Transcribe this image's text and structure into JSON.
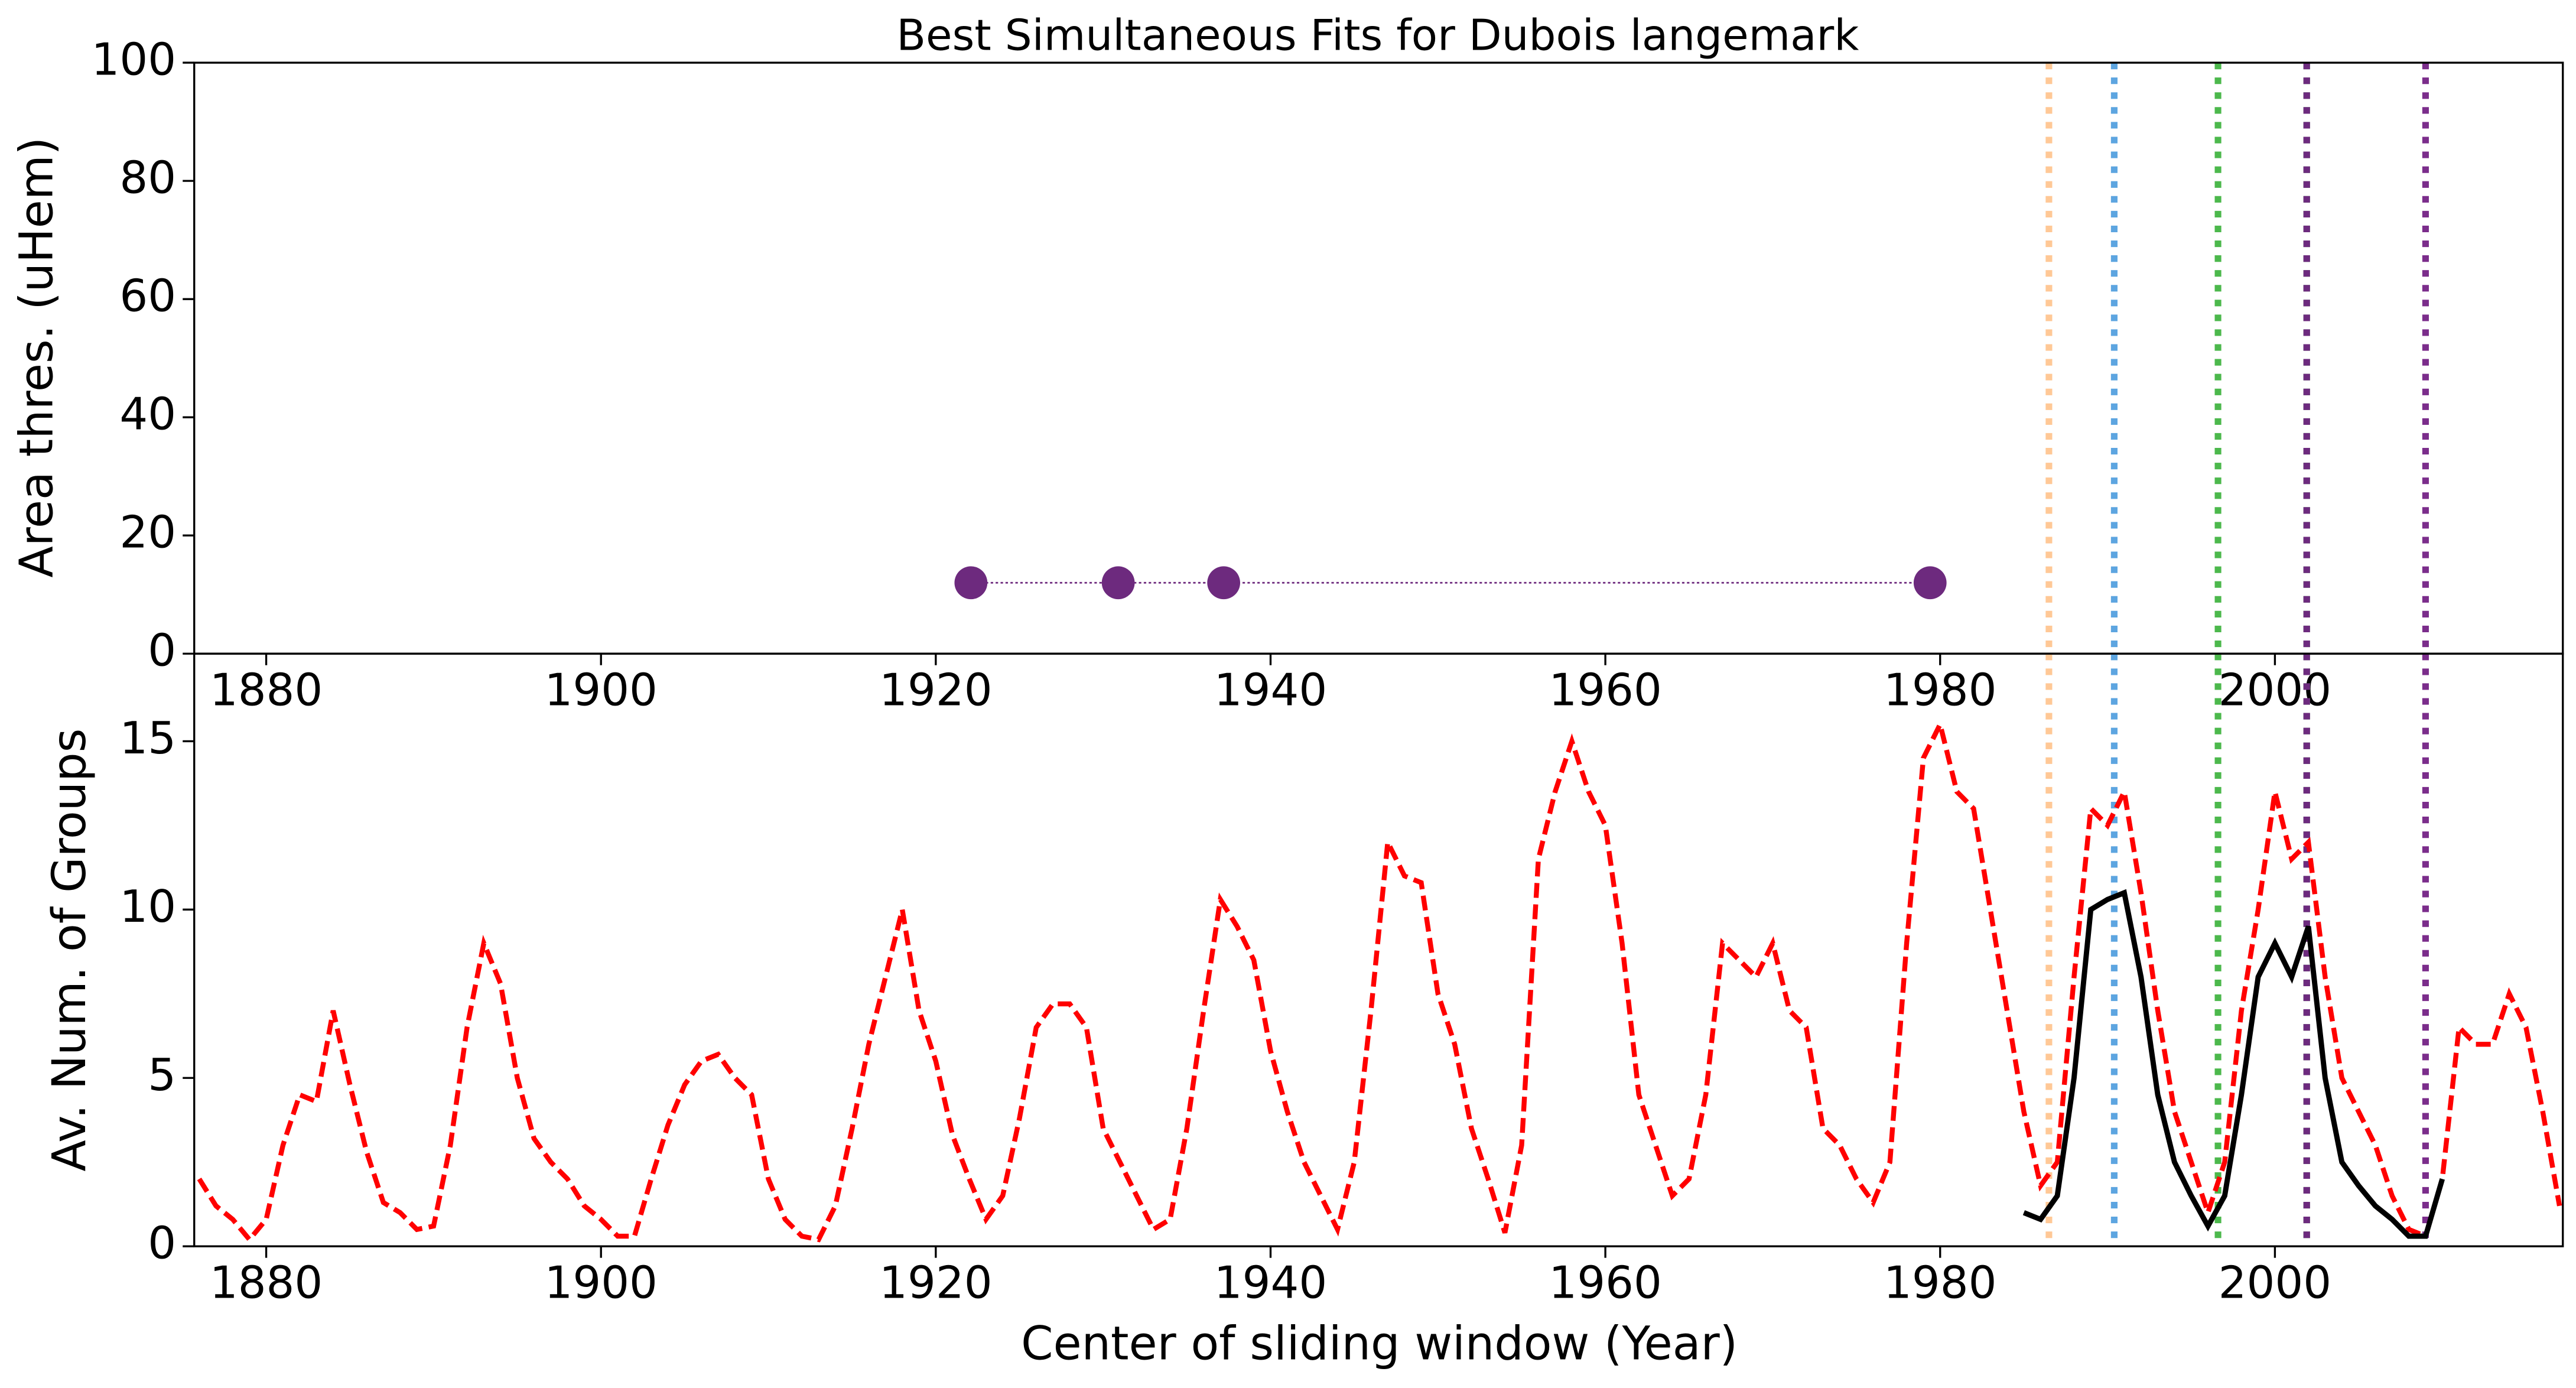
{
  "chart_data": [
    {
      "type": "line",
      "title": "Best Simultaneous Fits for Dubois langemark",
      "ylabel": "Area thres. (uHem)",
      "xlim": [
        1875.7,
        2017.2
      ],
      "xticks": [
        1880,
        1900,
        1920,
        1940,
        1960,
        1980,
        2000
      ],
      "ylim": [
        0,
        100
      ],
      "yticks": [
        0,
        20,
        40,
        60,
        80,
        100
      ],
      "marker": true,
      "vlines": [
        {
          "value": 1986.5,
          "color": "#ffc896"
        },
        {
          "value": 1990.4,
          "color": "#5da5e0"
        },
        {
          "value": 1996.6,
          "color": "#4cb84c"
        },
        {
          "value": 2001.9,
          "color": "#4cb84c"
        },
        {
          "value": 2001.9,
          "color": "#6d2a7e"
        },
        {
          "value": 2009.0,
          "color": "#7b2d8b"
        }
      ],
      "series": [
        {
          "color": "#6d2a7e",
          "x": [
            1922.1,
            1930.9,
            1937.2,
            1979.4
          ],
          "values": [
            12,
            12,
            12,
            12
          ]
        }
      ]
    },
    {
      "type": "line",
      "xlabel": "Center of sliding window (Year)",
      "ylabel": "Av. Num. of Groups",
      "xlim": [
        1875.7,
        2017.2
      ],
      "xticks": [
        1880,
        1900,
        1920,
        1940,
        1960,
        1980,
        2000
      ],
      "ylim": [
        0,
        17.6
      ],
      "yticks": [
        0,
        5,
        10,
        15
      ],
      "marker": false,
      "vlines": [
        {
          "value": 1986.5,
          "color": "#ffc896"
        },
        {
          "value": 1990.4,
          "color": "#5da5e0"
        },
        {
          "value": 1996.6,
          "color": "#4cb84c"
        },
        {
          "value": 2001.9,
          "color": "#4cb84c"
        },
        {
          "value": 2001.9,
          "color": "#6d2a7e"
        },
        {
          "value": 2009.0,
          "color": "#7b2d8b"
        }
      ],
      "series": [
        {
          "color": "#ff0000",
          "dash": true,
          "x": [
            1876,
            1877,
            1878,
            1879,
            1880,
            1881,
            1882,
            1883,
            1884,
            1885,
            1886,
            1887,
            1888,
            1889,
            1890,
            1891,
            1892,
            1893,
            1894,
            1895,
            1896,
            1897,
            1898,
            1899,
            1900,
            1901,
            1902,
            1903,
            1904,
            1905,
            1906,
            1907,
            1908,
            1909,
            1910,
            1911,
            1912,
            1913,
            1914,
            1915,
            1916,
            1917,
            1918,
            1919,
            1920,
            1921,
            1922,
            1923,
            1924,
            1925,
            1926,
            1927,
            1928,
            1929,
            1930,
            1931,
            1932,
            1933,
            1934,
            1935,
            1936,
            1937,
            1938,
            1939,
            1940,
            1941,
            1942,
            1943,
            1944,
            1945,
            1946,
            1947,
            1948,
            1949,
            1950,
            1951,
            1952,
            1953,
            1954,
            1955,
            1956,
            1957,
            1958,
            1959,
            1960,
            1961,
            1962,
            1963,
            1964,
            1965,
            1966,
            1967,
            1968,
            1969,
            1970,
            1971,
            1972,
            1973,
            1974,
            1975,
            1976,
            1977,
            1978,
            1979,
            1980,
            1981,
            1982,
            1983,
            1984,
            1985,
            1986,
            1987,
            1988,
            1989,
            1990,
            1991,
            1992,
            1993,
            1994,
            1995,
            1996,
            1997,
            1998,
            1999,
            2000,
            2001,
            2002,
            2003,
            2004,
            2005,
            2006,
            2007,
            2008,
            2009,
            2010,
            2011,
            2012,
            2013,
            2014,
            2015,
            2016,
            2017
          ],
          "values": [
            2.0,
            1.2,
            0.8,
            0.2,
            0.8,
            3.0,
            4.5,
            4.3,
            7.0,
            4.8,
            2.8,
            1.3,
            1.0,
            0.5,
            0.6,
            3.0,
            6.5,
            9.0,
            7.8,
            5.0,
            3.2,
            2.5,
            2.0,
            1.2,
            0.8,
            0.3,
            0.3,
            2.0,
            3.6,
            4.8,
            5.5,
            5.7,
            5.0,
            4.5,
            2.0,
            0.8,
            0.3,
            0.2,
            1.2,
            3.5,
            6.0,
            8.0,
            10.0,
            7.0,
            5.5,
            3.3,
            2.0,
            0.8,
            1.5,
            3.8,
            6.5,
            7.2,
            7.2,
            6.5,
            3.5,
            2.5,
            1.5,
            0.5,
            0.8,
            3.5,
            7.0,
            10.3,
            9.5,
            8.5,
            5.8,
            4.0,
            2.5,
            1.5,
            0.5,
            2.5,
            7.0,
            12.0,
            11.0,
            10.8,
            7.5,
            6.0,
            3.5,
            2.0,
            0.4,
            3.0,
            11.5,
            13.5,
            15.0,
            13.5,
            12.5,
            9.0,
            4.5,
            3.0,
            1.5,
            2.0,
            4.5,
            9.0,
            8.5,
            8.0,
            9.0,
            7.0,
            6.5,
            3.5,
            3.0,
            2.0,
            1.3,
            2.5,
            9.0,
            14.5,
            15.5,
            13.5,
            13.0,
            10.0,
            7.0,
            4.0,
            1.8,
            2.5,
            8.0,
            13.0,
            12.5,
            13.5,
            10.5,
            7.0,
            4.0,
            2.5,
            1.0,
            2.5,
            7.0,
            10.0,
            13.5,
            11.5,
            12.0,
            8.0,
            5.0,
            4.0,
            3.0,
            1.5,
            0.5,
            0.3,
            2.0,
            6.5,
            6.0,
            6.0,
            7.5,
            6.5,
            4.0,
            1.2
          ]
        },
        {
          "color": "#000000",
          "dash": false,
          "x": [
            1985,
            1986,
            1987,
            1988,
            1989,
            1990,
            1991,
            1992,
            1993,
            1994,
            1995,
            1996,
            1997,
            1998,
            1999,
            2000,
            2001,
            2002,
            2003,
            2004,
            2005,
            2006,
            2007,
            2008,
            2009,
            2010
          ],
          "values": [
            1.0,
            0.8,
            1.5,
            5.0,
            10.0,
            10.3,
            10.5,
            8.0,
            4.5,
            2.5,
            1.5,
            0.6,
            1.5,
            4.5,
            8.0,
            9.0,
            8.0,
            9.5,
            5.0,
            2.5,
            1.8,
            1.2,
            0.8,
            0.3,
            0.3,
            2.0
          ]
        }
      ]
    }
  ]
}
